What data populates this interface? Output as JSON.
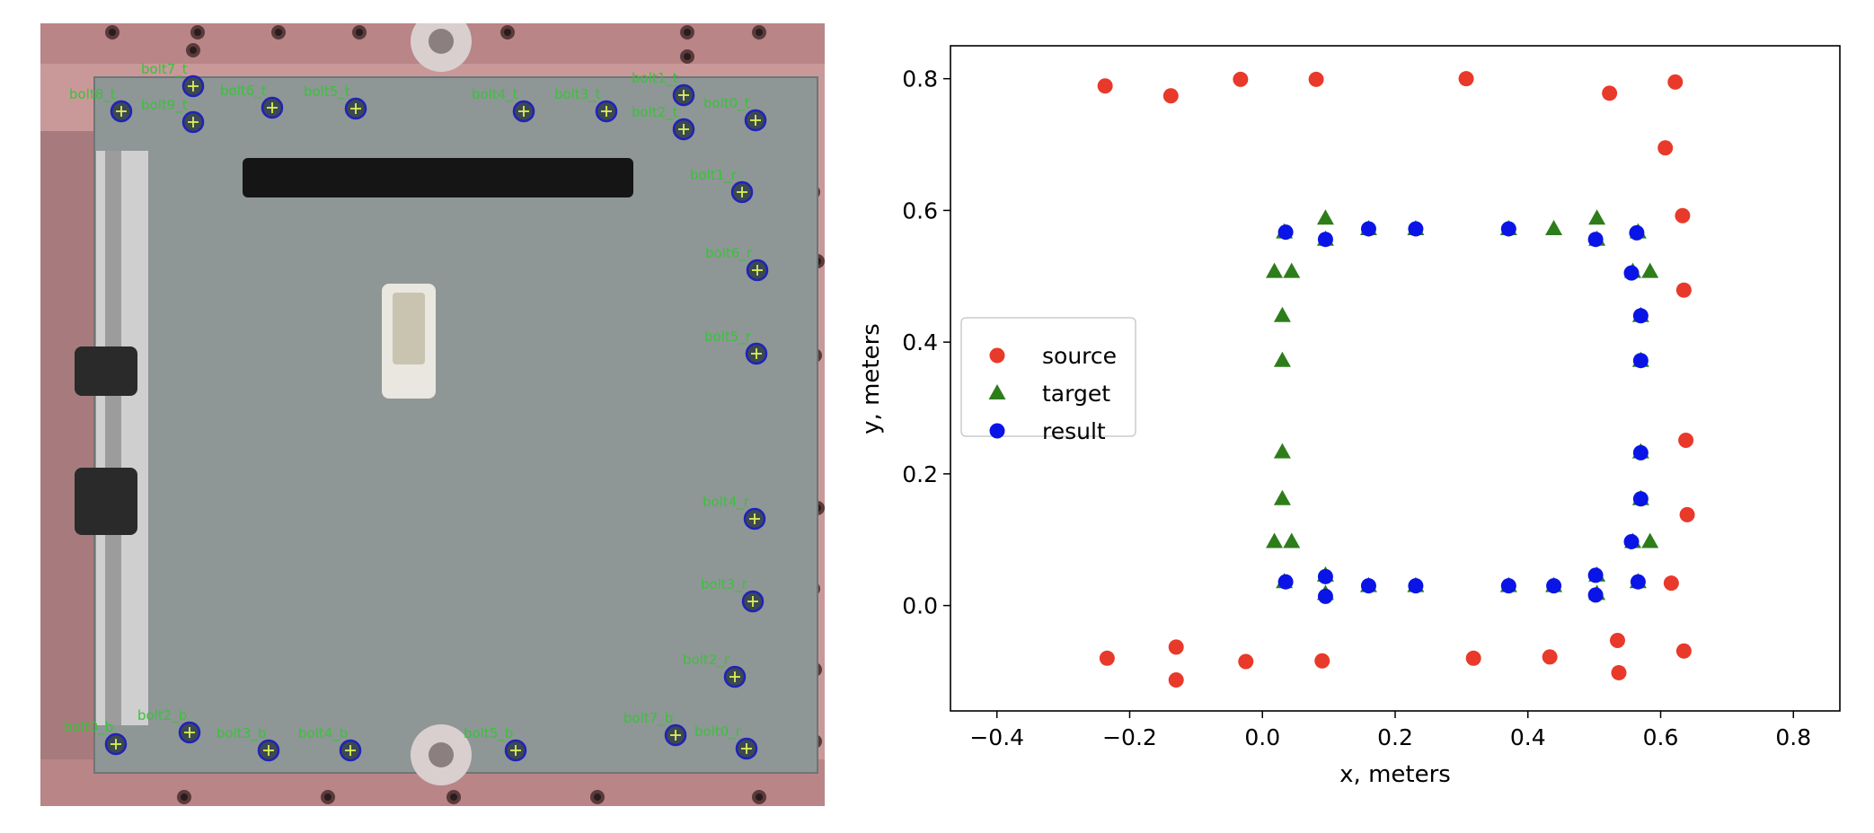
{
  "photo": {
    "bolt_labels": [
      "bolt8_t",
      "bolt7_t",
      "bolt6_t",
      "bolt5_t",
      "bolt4_t",
      "bolt3_t",
      "bolt1_t",
      "bolt0_t",
      "bolt9_t",
      "bolt2_t",
      "bolt6_r",
      "bolt5_r",
      "bolt4_r",
      "bolt3_r",
      "bolt2_r",
      "bolt1_r",
      "bolt0_b",
      "bolt2_b",
      "bolt3_b",
      "bolt4_b",
      "bolt5_b",
      "bolt7_b",
      "bolt0_r"
    ],
    "colors": {
      "plate": "#8f9696",
      "frame": "#c9999a",
      "label": "#39c23a",
      "circle": "#1d24b8",
      "cross": "#d8f25a"
    }
  },
  "chart_data": {
    "type": "scatter",
    "xlabel": "x, meters",
    "ylabel": "y, meters",
    "xlim": [
      -0.47,
      0.87
    ],
    "ylim": [
      -0.16,
      0.85
    ],
    "xticks": [
      -0.4,
      -0.2,
      0.0,
      0.2,
      0.4,
      0.6,
      0.8
    ],
    "xtick_labels": [
      "−0.4",
      "−0.2",
      "0.0",
      "0.2",
      "0.4",
      "0.6",
      "0.8"
    ],
    "yticks": [
      0.0,
      0.2,
      0.4,
      0.6,
      0.8
    ],
    "ytick_labels": [
      "0.0",
      "0.2",
      "0.4",
      "0.6",
      "0.8"
    ],
    "grid": false,
    "legend_position": "center-left",
    "series": [
      {
        "name": "source",
        "marker": "circle",
        "color": "#e8392b",
        "points": [
          [
            -0.237,
            0.789
          ],
          [
            -0.138,
            0.774
          ],
          [
            -0.033,
            0.799
          ],
          [
            0.081,
            0.799
          ],
          [
            0.307,
            0.8
          ],
          [
            0.523,
            0.778
          ],
          [
            0.622,
            0.795
          ],
          [
            0.607,
            0.695
          ],
          [
            0.633,
            0.592
          ],
          [
            0.635,
            0.479
          ],
          [
            0.638,
            0.251
          ],
          [
            0.64,
            0.138
          ],
          [
            0.616,
            0.034
          ],
          [
            0.635,
            -0.069
          ],
          [
            0.535,
            -0.053
          ],
          [
            0.537,
            -0.102
          ],
          [
            0.433,
            -0.078
          ],
          [
            0.318,
            -0.08
          ],
          [
            0.09,
            -0.084
          ],
          [
            -0.025,
            -0.085
          ],
          [
            -0.13,
            -0.063
          ],
          [
            -0.13,
            -0.113
          ],
          [
            -0.234,
            -0.08
          ]
        ]
      },
      {
        "name": "target",
        "marker": "triangle",
        "color": "#2e7d1b",
        "points": [
          [
            0.033,
            0.567
          ],
          [
            0.095,
            0.588
          ],
          [
            0.16,
            0.572
          ],
          [
            0.231,
            0.572
          ],
          [
            0.371,
            0.572
          ],
          [
            0.439,
            0.572
          ],
          [
            0.504,
            0.588
          ],
          [
            0.566,
            0.567
          ],
          [
            0.558,
            0.507
          ],
          [
            0.584,
            0.507
          ],
          [
            0.57,
            0.44
          ],
          [
            0.57,
            0.372
          ],
          [
            0.57,
            0.233
          ],
          [
            0.57,
            0.162
          ],
          [
            0.558,
            0.097
          ],
          [
            0.584,
            0.097
          ],
          [
            0.566,
            0.036
          ],
          [
            0.504,
            0.018
          ],
          [
            0.439,
            0.03
          ],
          [
            0.371,
            0.03
          ],
          [
            0.231,
            0.03
          ],
          [
            0.16,
            0.03
          ],
          [
            0.095,
            0.018
          ],
          [
            0.033,
            0.036
          ],
          [
            0.018,
            0.097
          ],
          [
            0.044,
            0.097
          ],
          [
            0.03,
            0.162
          ],
          [
            0.03,
            0.233
          ],
          [
            0.03,
            0.372
          ],
          [
            0.03,
            0.44
          ],
          [
            0.018,
            0.507
          ],
          [
            0.044,
            0.507
          ],
          [
            0.095,
            0.556
          ],
          [
            0.504,
            0.556
          ],
          [
            0.095,
            0.046
          ],
          [
            0.504,
            0.046
          ]
        ]
      },
      {
        "name": "result",
        "marker": "circle",
        "color": "#0a14e6",
        "points": [
          [
            0.035,
            0.567
          ],
          [
            0.095,
            0.556
          ],
          [
            0.16,
            0.572
          ],
          [
            0.231,
            0.572
          ],
          [
            0.371,
            0.572
          ],
          [
            0.502,
            0.556
          ],
          [
            0.564,
            0.566
          ],
          [
            0.556,
            0.505
          ],
          [
            0.57,
            0.44
          ],
          [
            0.57,
            0.372
          ],
          [
            0.57,
            0.232
          ],
          [
            0.57,
            0.162
          ],
          [
            0.556,
            0.097
          ],
          [
            0.566,
            0.036
          ],
          [
            0.502,
            0.016
          ],
          [
            0.502,
            0.046
          ],
          [
            0.439,
            0.03
          ],
          [
            0.371,
            0.03
          ],
          [
            0.231,
            0.03
          ],
          [
            0.16,
            0.03
          ],
          [
            0.095,
            0.014
          ],
          [
            0.095,
            0.044
          ],
          [
            0.035,
            0.036
          ]
        ]
      }
    ]
  }
}
